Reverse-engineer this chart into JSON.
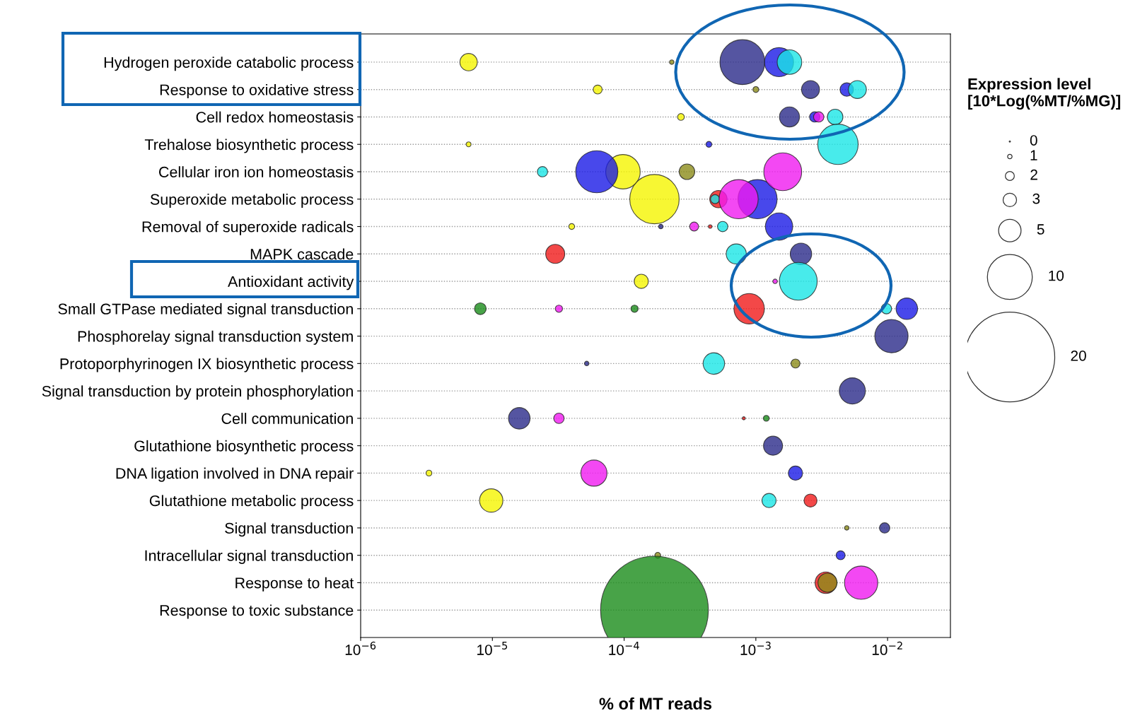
{
  "chart_data": {
    "type": "bubble",
    "orientation": "horizontal",
    "xlabel": "% of MT reads",
    "legend_title": "Expression level\n[10*Log(%MT/%MG)]",
    "categories": [
      "Hydrogen peroxide catabolic process",
      "Response to oxidative stress",
      "Cell redox homeostasis",
      "Trehalose biosynthetic process",
      "Cellular iron ion homeostasis",
      "Superoxide metabolic process",
      "Removal of superoxide radicals",
      "MAPK cascade",
      "Antioxidant activity",
      "Small GTPase mediated signal transduction",
      "Phosphorelay signal transduction system",
      "Protoporphyrinogen IX biosynthetic process",
      "Signal transduction by protein phosphorylation",
      "Cell communication",
      "Glutathione biosynthetic process",
      "DNA ligation involved in DNA repair",
      "Glutathione metabolic process",
      "Signal transduction",
      "Intracellular signal transduction",
      "Response to heat",
      "Response to toxic substance"
    ],
    "log": "x",
    "xlim": [
      1e-06,
      0.03
    ],
    "xticks": [
      {
        "value": 1e-06,
        "label": "10$^{−6}$"
      },
      {
        "value": 1e-05,
        "label": "10$^{−5}$"
      },
      {
        "value": 0.0001,
        "label": "10$^{−4}$"
      },
      {
        "value": 0.001,
        "label": "10$^{−3}$"
      },
      {
        "value": 0.01,
        "label": "10$^{−2}$"
      }
    ],
    "grid": "y",
    "size_legend": [
      {
        "value": 0,
        "label": "0"
      },
      {
        "value": 1,
        "label": "1"
      },
      {
        "value": 4,
        "label": "2"
      },
      {
        "value": 9,
        "label": "3"
      },
      {
        "value": 25,
        "label": "5"
      },
      {
        "value": 100,
        "label": "10"
      },
      {
        "value": 400,
        "label": "20"
      }
    ],
    "series": [
      {
        "color": "#f01a1a",
        "values": [
          null,
          null,
          null,
          null,
          null,
          0.00052,
          0.00045,
          3e-05,
          null,
          0.00089,
          null,
          null,
          null,
          0.00081,
          null,
          null,
          0.0026,
          null,
          null,
          0.0034,
          null
        ],
        "sizes": [
          null,
          null,
          null,
          null,
          null,
          15,
          0.64,
          18,
          null,
          46,
          null,
          null,
          null,
          0.49,
          null,
          null,
          8.4,
          null,
          null,
          23,
          null
        ]
      },
      {
        "color": "#f5f500",
        "values": [
          6.6e-06,
          6.3e-05,
          0.00027,
          6.6e-06,
          9.8e-05,
          0.00017,
          4e-05,
          null,
          0.000135,
          null,
          null,
          null,
          null,
          null,
          null,
          3.3e-06,
          9.8e-06,
          null,
          null,
          null,
          null
        ],
        "sizes": [
          15,
          4,
          2.3,
          1.2,
          59,
          121,
          1.7,
          null,
          10,
          null,
          null,
          null,
          null,
          null,
          null,
          1.7,
          27,
          null,
          null,
          null,
          null
        ]
      },
      {
        "color": "#2a2a8a",
        "values": [
          0.00079,
          0.0026,
          0.0018,
          null,
          null,
          null,
          0.00019,
          0.0022,
          null,
          null,
          0.0107,
          5.2e-05,
          0.0054,
          1.6e-05,
          0.00135,
          null,
          null,
          0.0095,
          null,
          null,
          null
        ],
        "sizes": [
          100,
          16,
          20,
          null,
          null,
          null,
          1,
          23,
          null,
          null,
          55,
          1,
          34,
          23,
          18,
          null,
          null,
          5.3,
          null,
          null,
          null
        ]
      },
      {
        "color": "#1a1ae6",
        "values": [
          0.0015,
          0.0049,
          0.0028,
          0.00044,
          6.2e-05,
          0.00103,
          0.0015,
          null,
          null,
          0.014,
          null,
          null,
          null,
          null,
          null,
          0.002,
          null,
          null,
          0.0044,
          null,
          null
        ],
        "sizes": [
          42,
          9,
          5.3,
          1.7,
          88,
          76,
          37,
          null,
          null,
          23,
          null,
          null,
          null,
          null,
          null,
          10,
          null,
          null,
          4,
          null,
          null
        ]
      },
      {
        "color": "#1ae6e6",
        "values": [
          0.0018,
          0.0059,
          0.004,
          0.0042,
          2.4e-05,
          0.00049,
          0.00056,
          0.00071,
          0.0021,
          0.0098,
          null,
          0.00048,
          null,
          null,
          null,
          null,
          0.00126,
          null,
          null,
          null,
          null
        ],
        "sizes": [
          30,
          16,
          12,
          81,
          5.3,
          4,
          5.3,
          20,
          71,
          5.3,
          null,
          23,
          null,
          null,
          null,
          null,
          10,
          null,
          null,
          null,
          null
        ]
      },
      {
        "color": "#8c8c1a",
        "values": [
          0.00023,
          0.001,
          null,
          null,
          0.0003,
          null,
          null,
          null,
          null,
          null,
          null,
          0.002,
          null,
          null,
          null,
          null,
          null,
          0.0049,
          0.00018,
          0.0035,
          null
        ],
        "sizes": [
          1,
          1.7,
          null,
          null,
          12,
          null,
          null,
          null,
          null,
          null,
          null,
          4,
          null,
          null,
          null,
          null,
          null,
          1,
          1.7,
          18,
          null
        ]
      },
      {
        "color": "#f01af0",
        "values": [
          null,
          null,
          0.003,
          null,
          0.0016,
          0.00074,
          0.00034,
          null,
          0.0014,
          3.2e-05,
          null,
          null,
          null,
          3.2e-05,
          null,
          5.9e-05,
          null,
          null,
          null,
          0.0063,
          null
        ],
        "sizes": [
          null,
          null,
          5.3,
          null,
          71,
          76,
          4,
          null,
          1,
          2.6,
          null,
          null,
          null,
          5.3,
          null,
          34,
          null,
          null,
          null,
          55,
          null
        ]
      },
      {
        "color": "#1a8c1a",
        "values": [
          null,
          null,
          null,
          null,
          null,
          null,
          null,
          null,
          null,
          8.1e-06,
          null,
          null,
          null,
          0.0012,
          null,
          null,
          null,
          null,
          null,
          null,
          0.00017
        ],
        "sizes": [
          null,
          null,
          null,
          null,
          null,
          null,
          null,
          null,
          null,
          6.8,
          null,
          null,
          null,
          1.7,
          null,
          null,
          null,
          null,
          null,
          null,
          576
        ]
      },
      {
        "color": "#1a8c1a",
        "values": [
          null,
          null,
          null,
          null,
          null,
          null,
          null,
          null,
          null,
          0.00012,
          null,
          null,
          null,
          null,
          null,
          null,
          null,
          null,
          null,
          null,
          null
        ],
        "sizes": [
          null,
          null,
          null,
          null,
          null,
          null,
          null,
          null,
          null,
          2.6,
          null,
          null,
          null,
          null,
          null,
          null,
          null,
          null,
          null,
          null,
          null
        ]
      }
    ]
  }
}
